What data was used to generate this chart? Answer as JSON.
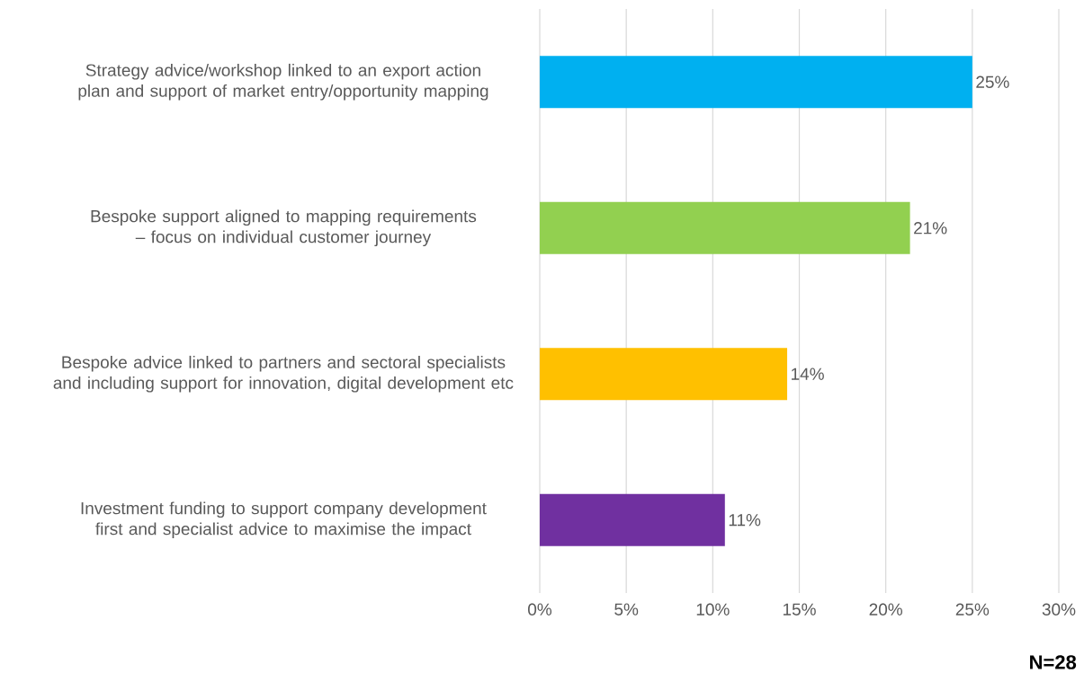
{
  "chart_data": {
    "type": "bar",
    "orientation": "horizontal",
    "categories": [
      "Strategy advice/workshop linked to an export action plan and support of market entry/opportunity mapping",
      "Bespoke support aligned to mapping requirements – focus on individual customer journey",
      "Bespoke advice linked to partners and sectoral specialists and including support for innovation, digital development etc",
      "Investment funding to support company development first and specialist advice to maximise the impact"
    ],
    "values": [
      25,
      21.4,
      14.3,
      10.7
    ],
    "value_labels": [
      "25%",
      "21%",
      "14%",
      "11%"
    ],
    "colors": [
      "#00b0f0",
      "#92d050",
      "#ffc000",
      "#7030a0"
    ],
    "xlim": [
      0,
      30
    ],
    "xticks": [
      {
        "value": 0,
        "label": "0%"
      },
      {
        "value": 5,
        "label": "5%"
      },
      {
        "value": 10,
        "label": "10%"
      },
      {
        "value": 15,
        "label": "15%"
      },
      {
        "value": 20,
        "label": "20%"
      },
      {
        "value": 25,
        "label": "25%"
      },
      {
        "value": 30,
        "label": "30%"
      }
    ],
    "grid": "x",
    "annotations": [
      "N=28"
    ]
  }
}
